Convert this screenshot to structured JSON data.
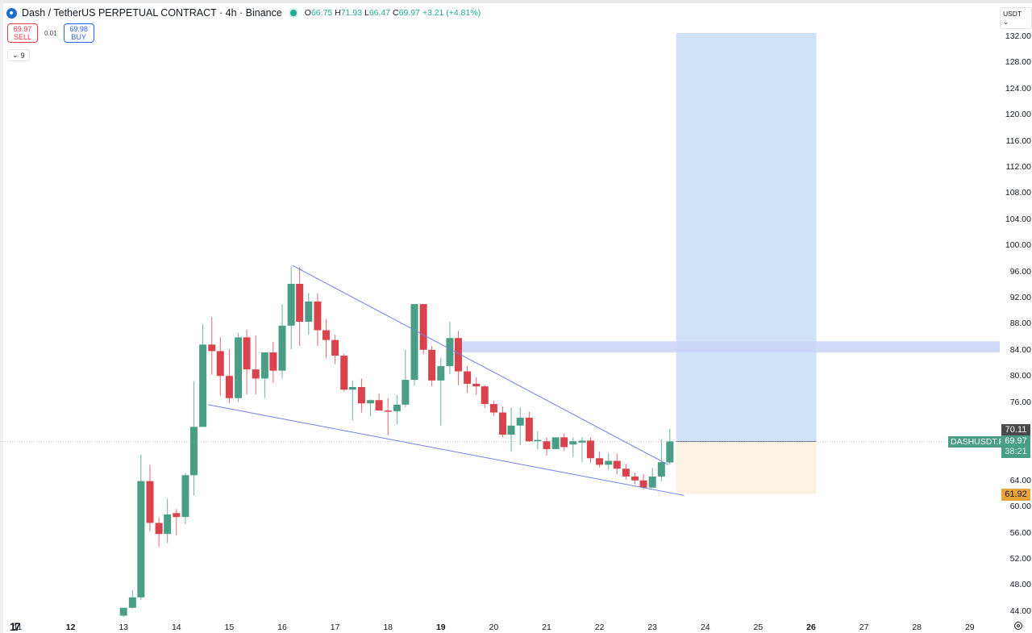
{
  "header": {
    "symbol_title": "Dash / TetherUS PERPETUAL CONTRACT · 4h · Binance",
    "ohlc": {
      "o_label": "O",
      "o": "66.75",
      "h_label": "H",
      "h": "71.93",
      "l_label": "L",
      "l": "66.47",
      "c_label": "C",
      "c": "69.97",
      "change": "+3.21 (+4.81%)"
    },
    "sell_price": "69.97",
    "sell_label": "SELL",
    "spread": "0.01",
    "buy_price": "69.98",
    "buy_label": "BUY",
    "indicators_count": "9",
    "currency": "USDT"
  },
  "price_tags": {
    "high": "70.11",
    "symbol": "DASHUSDT.P",
    "last": "69.97",
    "countdown": "38:21",
    "stop_level": "61.92"
  },
  "colors": {
    "up": "#4a9e86",
    "down": "#d9434d",
    "trendline": "#6e7fe0",
    "target_zone": "#cfe1f7",
    "stop_zone": "#fbf2e3",
    "resistance_band": "#c9d5f8",
    "last_price": "#4a9e86",
    "stop_tag": "#e8a33a"
  },
  "chart_data": {
    "type": "candlestick",
    "title": "Dash / TetherUS PERPETUAL CONTRACT · 4h · Binance",
    "xlabel": "",
    "ylabel": "USDT",
    "ylim": [
      43,
      135
    ],
    "y_ticks": [
      "132.00",
      "128.00",
      "124.00",
      "120.00",
      "116.00",
      "112.00",
      "108.00",
      "104.00",
      "100.00",
      "96.00",
      "92.00",
      "88.00",
      "84.00",
      "80.00",
      "76.00",
      "64.00",
      "60.00",
      "56.00",
      "52.00",
      "48.00",
      "44.00"
    ],
    "y_tick_values": [
      132,
      128,
      124,
      120,
      116,
      112,
      108,
      104,
      100,
      96,
      92,
      88,
      84,
      80,
      76,
      64,
      60,
      56,
      52,
      48,
      44
    ],
    "x_ticks": [
      "11",
      "12",
      "13",
      "14",
      "15",
      "16",
      "17",
      "18",
      "19",
      "20",
      "21",
      "22",
      "23",
      "24",
      "25",
      "26",
      "27",
      "28",
      "29"
    ],
    "x_ticks_bold": [
      "12",
      "19",
      "26"
    ],
    "grid": false,
    "candles": [
      {
        "day": 13.0,
        "o": 43.3,
        "h": 44.5,
        "l": 43.1,
        "c": 44.5
      },
      {
        "day": 13.17,
        "o": 44.5,
        "h": 47.2,
        "l": 44.4,
        "c": 46.1
      },
      {
        "day": 13.33,
        "o": 46.1,
        "h": 68.0,
        "l": 45.7,
        "c": 63.9
      },
      {
        "day": 13.5,
        "o": 63.9,
        "h": 66.4,
        "l": 56.2,
        "c": 57.5
      },
      {
        "day": 13.67,
        "o": 57.5,
        "h": 58.3,
        "l": 53.8,
        "c": 55.8
      },
      {
        "day": 13.83,
        "o": 55.8,
        "h": 61.2,
        "l": 54.4,
        "c": 58.8
      },
      {
        "day": 14.0,
        "o": 59.0,
        "h": 59.6,
        "l": 55.6,
        "c": 58.4
      },
      {
        "day": 14.17,
        "o": 58.4,
        "h": 65.2,
        "l": 57.3,
        "c": 64.8
      },
      {
        "day": 14.33,
        "o": 64.8,
        "h": 79.2,
        "l": 61.7,
        "c": 72.2
      },
      {
        "day": 14.5,
        "o": 72.2,
        "h": 87.9,
        "l": 72.2,
        "c": 84.8
      },
      {
        "day": 14.67,
        "o": 84.8,
        "h": 89.0,
        "l": 80.2,
        "c": 83.8
      },
      {
        "day": 14.83,
        "o": 83.8,
        "h": 85.9,
        "l": 77.0,
        "c": 80.0
      },
      {
        "day": 15.0,
        "o": 80.0,
        "h": 84.1,
        "l": 75.8,
        "c": 76.6
      },
      {
        "day": 15.17,
        "o": 76.6,
        "h": 86.6,
        "l": 76.0,
        "c": 85.9
      },
      {
        "day": 15.33,
        "o": 85.9,
        "h": 87.1,
        "l": 77.2,
        "c": 81.0
      },
      {
        "day": 15.5,
        "o": 81.0,
        "h": 86.2,
        "l": 77.2,
        "c": 79.6
      },
      {
        "day": 15.67,
        "o": 79.6,
        "h": 83.1,
        "l": 76.6,
        "c": 83.6
      },
      {
        "day": 15.83,
        "o": 83.6,
        "h": 85.2,
        "l": 78.9,
        "c": 80.8
      },
      {
        "day": 16.0,
        "o": 80.8,
        "h": 91.0,
        "l": 79.6,
        "c": 87.7
      },
      {
        "day": 16.17,
        "o": 87.7,
        "h": 96.7,
        "l": 84.1,
        "c": 94.1
      },
      {
        "day": 16.33,
        "o": 94.1,
        "h": 96.7,
        "l": 84.6,
        "c": 88.3
      },
      {
        "day": 16.5,
        "o": 88.3,
        "h": 92.7,
        "l": 86.3,
        "c": 91.4
      },
      {
        "day": 16.67,
        "o": 91.4,
        "h": 92.7,
        "l": 84.6,
        "c": 87.0
      },
      {
        "day": 16.83,
        "o": 87.0,
        "h": 88.7,
        "l": 82.7,
        "c": 85.5
      },
      {
        "day": 17.0,
        "o": 85.5,
        "h": 86.3,
        "l": 81.8,
        "c": 83.1
      },
      {
        "day": 17.17,
        "o": 83.1,
        "h": 83.4,
        "l": 77.6,
        "c": 77.9
      },
      {
        "day": 17.33,
        "o": 77.9,
        "h": 79.3,
        "l": 73.2,
        "c": 78.3
      },
      {
        "day": 17.5,
        "o": 78.3,
        "h": 79.6,
        "l": 74.4,
        "c": 75.8
      },
      {
        "day": 17.67,
        "o": 75.8,
        "h": 76.4,
        "l": 73.9,
        "c": 76.3
      },
      {
        "day": 17.83,
        "o": 76.3,
        "h": 77.3,
        "l": 74.7,
        "c": 74.7
      },
      {
        "day": 18.0,
        "o": 74.7,
        "h": 76.6,
        "l": 70.9,
        "c": 74.6
      },
      {
        "day": 18.17,
        "o": 74.6,
        "h": 77.1,
        "l": 72.6,
        "c": 75.6
      },
      {
        "day": 18.33,
        "o": 75.6,
        "h": 84.0,
        "l": 75.2,
        "c": 79.4
      },
      {
        "day": 18.5,
        "o": 79.4,
        "h": 91.0,
        "l": 78.5,
        "c": 91.0
      },
      {
        "day": 18.67,
        "o": 91.0,
        "h": 91.0,
        "l": 83.3,
        "c": 84.0
      },
      {
        "day": 18.83,
        "o": 84.0,
        "h": 84.6,
        "l": 78.4,
        "c": 79.3
      },
      {
        "day": 19.0,
        "o": 79.3,
        "h": 82.8,
        "l": 72.4,
        "c": 81.5
      },
      {
        "day": 19.17,
        "o": 81.5,
        "h": 88.3,
        "l": 80.3,
        "c": 85.8
      },
      {
        "day": 19.33,
        "o": 85.8,
        "h": 86.9,
        "l": 78.6,
        "c": 80.7
      },
      {
        "day": 19.5,
        "o": 80.7,
        "h": 81.5,
        "l": 77.4,
        "c": 78.8
      },
      {
        "day": 19.67,
        "o": 78.8,
        "h": 79.8,
        "l": 77.1,
        "c": 78.4
      },
      {
        "day": 19.83,
        "o": 78.4,
        "h": 78.6,
        "l": 75.1,
        "c": 75.7
      },
      {
        "day": 20.0,
        "o": 75.7,
        "h": 76.1,
        "l": 73.9,
        "c": 74.4
      },
      {
        "day": 20.17,
        "o": 74.4,
        "h": 75.3,
        "l": 70.6,
        "c": 71.0
      },
      {
        "day": 20.33,
        "o": 71.0,
        "h": 75.2,
        "l": 68.4,
        "c": 72.4
      },
      {
        "day": 20.5,
        "o": 72.4,
        "h": 75.2,
        "l": 69.4,
        "c": 73.6
      },
      {
        "day": 20.67,
        "o": 73.6,
        "h": 74.5,
        "l": 69.9,
        "c": 70.0
      },
      {
        "day": 20.83,
        "o": 70.0,
        "h": 71.5,
        "l": 68.8,
        "c": 70.2
      },
      {
        "day": 21.0,
        "o": 70.0,
        "h": 70.6,
        "l": 67.8,
        "c": 68.8
      },
      {
        "day": 21.17,
        "o": 68.8,
        "h": 70.6,
        "l": 68.8,
        "c": 70.6
      },
      {
        "day": 21.33,
        "o": 70.6,
        "h": 71.2,
        "l": 68.5,
        "c": 69.1
      },
      {
        "day": 21.5,
        "o": 69.5,
        "h": 70.6,
        "l": 67.6,
        "c": 70.0
      },
      {
        "day": 21.67,
        "o": 69.8,
        "h": 70.6,
        "l": 66.8,
        "c": 70.1
      },
      {
        "day": 21.83,
        "o": 70.1,
        "h": 70.6,
        "l": 66.7,
        "c": 67.4
      },
      {
        "day": 22.0,
        "o": 67.4,
        "h": 68.4,
        "l": 66.0,
        "c": 66.4
      },
      {
        "day": 22.17,
        "o": 66.4,
        "h": 68.2,
        "l": 65.7,
        "c": 67.0
      },
      {
        "day": 22.33,
        "o": 67.0,
        "h": 68.1,
        "l": 64.9,
        "c": 65.8
      },
      {
        "day": 22.5,
        "o": 65.8,
        "h": 66.5,
        "l": 64.1,
        "c": 64.6
      },
      {
        "day": 22.67,
        "o": 64.6,
        "h": 65.2,
        "l": 63.4,
        "c": 64.0
      },
      {
        "day": 22.83,
        "o": 64.0,
        "h": 65.0,
        "l": 62.6,
        "c": 62.9
      },
      {
        "day": 23.0,
        "o": 62.9,
        "h": 65.9,
        "l": 62.9,
        "c": 64.6
      },
      {
        "day": 23.17,
        "o": 64.6,
        "h": 70.3,
        "l": 63.9,
        "c": 66.8
      },
      {
        "day": 23.33,
        "o": 66.75,
        "h": 71.93,
        "l": 66.47,
        "c": 69.97
      }
    ],
    "annotations": {
      "falling_wedge_upper": {
        "from": {
          "day": 16.2,
          "price": 96.9
        },
        "to": {
          "day": 23.3,
          "price": 66.4
        }
      },
      "falling_wedge_lower": {
        "from": {
          "day": 14.6,
          "price": 75.6
        },
        "to": {
          "day": 23.6,
          "price": 61.7
        }
      },
      "resistance_band": {
        "from_day": 19.3,
        "to_day": 29.0,
        "top": 85.3,
        "bottom": 83.6
      },
      "long_position": {
        "from_day": 23.45,
        "to_day": 26.1,
        "entry": 69.97,
        "target": 132.5,
        "stop": 61.92
      }
    }
  }
}
